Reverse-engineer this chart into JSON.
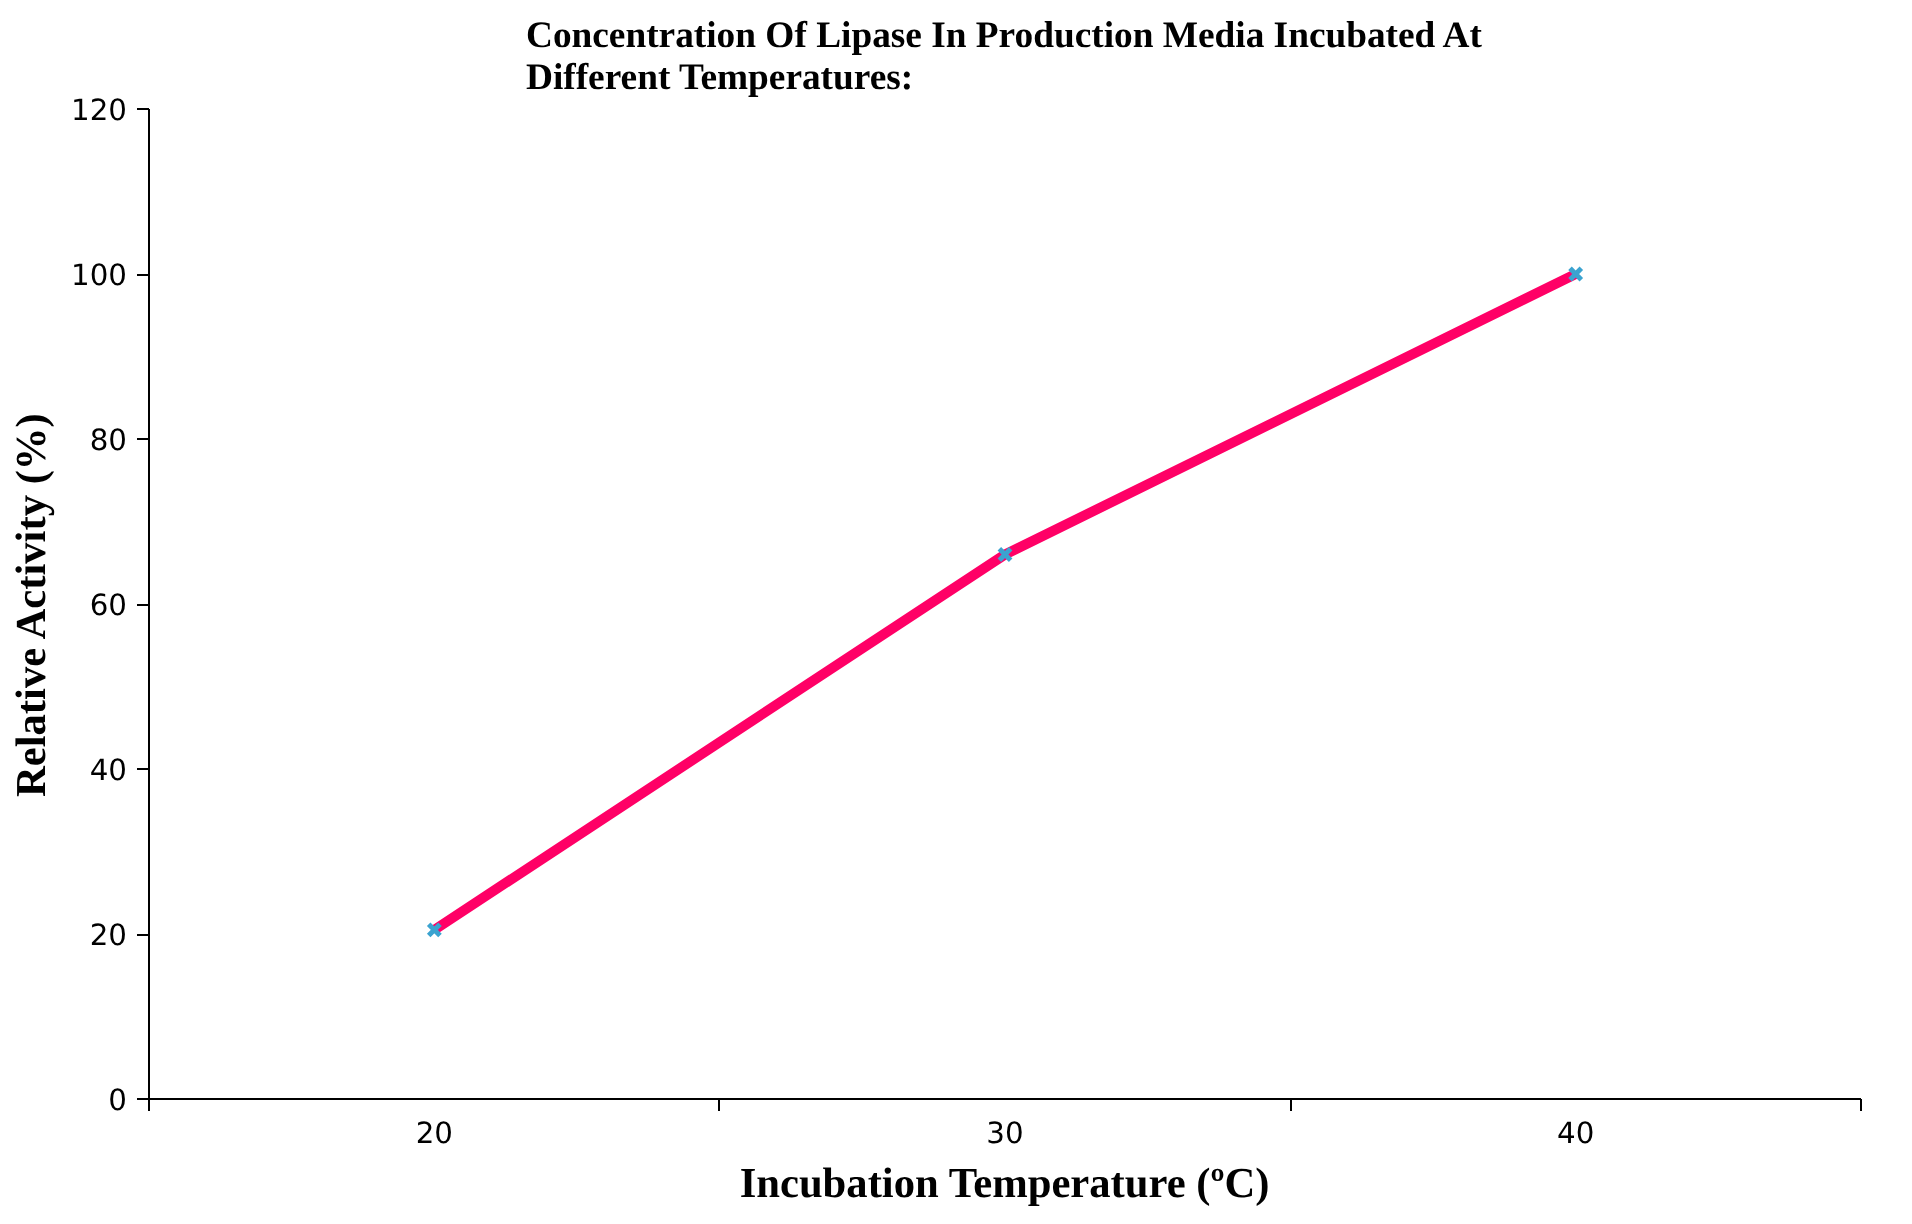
{
  "chart_data": {
    "type": "line",
    "title": "Concentration Of Lipase In Production Media Incubated At Different Temperatures:",
    "xlabel": "Incubation Temperature (ºC)",
    "ylabel": "Relative Activity (%)",
    "categories": [
      "20",
      "30",
      "40"
    ],
    "series": [
      {
        "color": "#ff0066",
        "values": [
          20.5,
          66,
          100
        ]
      }
    ],
    "ylim": [
      0,
      120
    ],
    "yticks": [
      0,
      20,
      40,
      60,
      80,
      100,
      120
    ],
    "grid": false,
    "marker": "cross",
    "line_style": "solid"
  }
}
